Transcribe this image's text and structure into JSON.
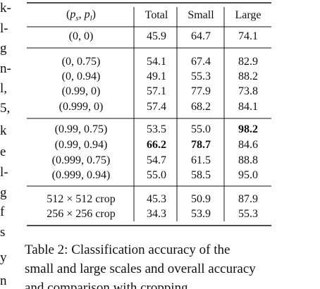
{
  "left_column": {
    "fragments": [
      "k-",
      "l-",
      "g",
      "n-",
      "l,",
      "5,",
      "k",
      "e",
      "l-",
      "g",
      "f",
      "s",
      "y",
      "n"
    ]
  },
  "table": {
    "header": {
      "label_parts": [
        "(",
        "p",
        "s",
        ", ",
        "p",
        "l",
        ")"
      ],
      "columns": [
        "Total",
        "Small",
        "Large"
      ]
    },
    "groups": [
      {
        "rows": [
          [
            "(0, 0)",
            "45.9",
            "64.7",
            "74.1"
          ]
        ]
      },
      {
        "rows": [
          [
            "(0, 0.75)",
            "54.1",
            "67.4",
            "82.9"
          ],
          [
            "(0, 0.94)",
            "49.1",
            "55.3",
            "88.2"
          ],
          [
            "(0.99, 0)",
            "57.1",
            "77.9",
            "73.8"
          ],
          [
            "(0.999, 0)",
            "57.4",
            "68.2",
            "84.1"
          ]
        ]
      },
      {
        "rows": [
          [
            "(0.99, 0.75)",
            "53.5",
            "55.0",
            {
              "text": "98.2",
              "bold": true
            }
          ],
          [
            "(0.99, 0.94)",
            {
              "text": "66.2",
              "bold": true
            },
            {
              "text": "78.7",
              "bold": true
            },
            "84.6"
          ],
          [
            "(0.999, 0.75)",
            "54.7",
            "61.5",
            "88.8"
          ],
          [
            "(0.999, 0.94)",
            "55.0",
            "58.5",
            "95.0"
          ]
        ]
      },
      {
        "rows": [
          [
            "512 × 512 crop",
            "45.3",
            "50.9",
            "87.9"
          ],
          [
            "256 × 256 crop",
            "34.3",
            "53.9",
            "55.3"
          ]
        ]
      }
    ]
  },
  "caption": {
    "lines": [
      "Table 2:  Classification accuracy of the",
      "small and large scales and overall accuracy",
      "and comparison with cropping."
    ]
  }
}
